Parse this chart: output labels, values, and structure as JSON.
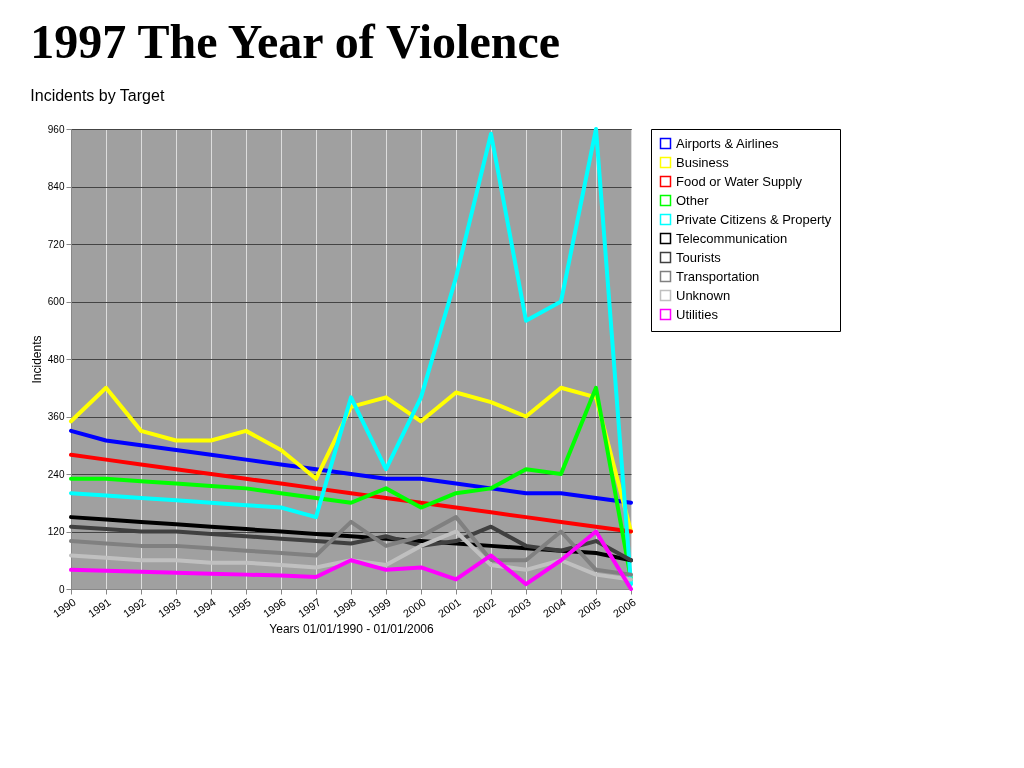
{
  "chart_data": {
    "type": "line",
    "title": "1997 The Year of Violence",
    "subtitle": "Incidents by Target",
    "xlabel": "Years 01/01/1990 - 01/01/2006",
    "ylabel": "Incidents",
    "categories": [
      "1990",
      "1991",
      "1992",
      "1993",
      "1994",
      "1995",
      "1996",
      "1997",
      "1998",
      "1999",
      "2000",
      "2001",
      "2002",
      "2003",
      "2004",
      "2005",
      "2006"
    ],
    "ylim": [
      0,
      960
    ],
    "yticks": [
      0,
      120,
      240,
      360,
      480,
      600,
      720,
      840,
      960
    ],
    "grid": true,
    "legend": "right",
    "line_style": "solid",
    "marker": "none",
    "series": [
      {
        "name": "Airports & Airlines",
        "color": "#0000ff",
        "values": [
          330,
          310,
          300,
          290,
          280,
          270,
          260,
          250,
          240,
          230,
          230,
          220,
          210,
          200,
          200,
          190,
          180
        ]
      },
      {
        "name": "Business",
        "color": "#ffff00",
        "values": [
          350,
          420,
          330,
          310,
          310,
          330,
          290,
          230,
          380,
          400,
          350,
          410,
          390,
          360,
          420,
          400,
          120
        ]
      },
      {
        "name": "Food or Water Supply",
        "color": "#ff0000",
        "values": [
          280,
          270,
          260,
          250,
          240,
          230,
          220,
          210,
          200,
          190,
          180,
          170,
          160,
          150,
          140,
          130,
          120
        ]
      },
      {
        "name": "Other",
        "color": "#00ff00",
        "values": [
          230,
          230,
          225,
          220,
          215,
          210,
          200,
          190,
          180,
          210,
          170,
          200,
          210,
          250,
          240,
          420,
          20
        ]
      },
      {
        "name": "Private Citizens & Property",
        "color": "#00ffff",
        "values": [
          200,
          195,
          190,
          185,
          180,
          175,
          170,
          150,
          400,
          250,
          400,
          650,
          950,
          560,
          600,
          960,
          10
        ]
      },
      {
        "name": "Telecommunication",
        "color": "#000000",
        "values": [
          150,
          145,
          140,
          135,
          130,
          125,
          120,
          115,
          110,
          105,
          100,
          95,
          90,
          85,
          80,
          75,
          60
        ]
      },
      {
        "name": "Tourists",
        "color": "#404040",
        "values": [
          130,
          125,
          120,
          120,
          115,
          110,
          105,
          100,
          95,
          110,
          90,
          100,
          130,
          90,
          80,
          100,
          60
        ]
      },
      {
        "name": "Transportation",
        "color": "#808080",
        "values": [
          100,
          95,
          90,
          90,
          85,
          80,
          75,
          70,
          140,
          90,
          110,
          150,
          60,
          60,
          120,
          40,
          30
        ]
      },
      {
        "name": "Unknown",
        "color": "#c0c0c0",
        "values": [
          70,
          65,
          60,
          60,
          55,
          55,
          50,
          45,
          60,
          50,
          90,
          120,
          50,
          40,
          60,
          30,
          20
        ]
      },
      {
        "name": "Utilities",
        "color": "#ff00ff",
        "values": [
          40,
          38,
          36,
          34,
          32,
          30,
          28,
          25,
          60,
          40,
          45,
          20,
          70,
          10,
          60,
          120,
          0
        ]
      }
    ]
  }
}
